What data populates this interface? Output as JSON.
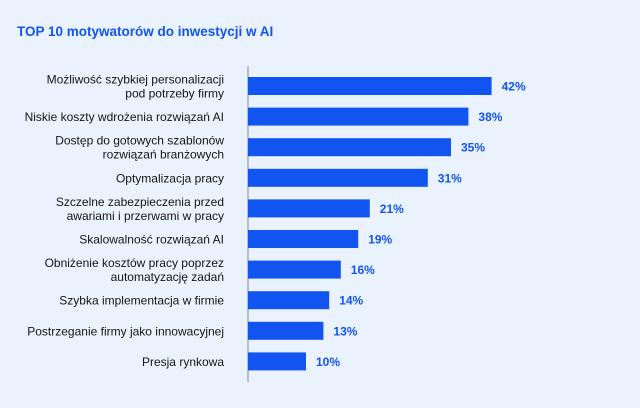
{
  "colors": {
    "background": "#eaf3fd",
    "bar": "#1254f0",
    "title": "#1254f0",
    "value_label": "#1254f0",
    "category_label": "#141414",
    "axis": "#7a8aa0"
  },
  "chart_data": {
    "type": "bar",
    "orientation": "horizontal",
    "title": "TOP 10 motywatorów do inwestycji w AI",
    "xlabel": "",
    "ylabel": "",
    "xlim": [
      0,
      50
    ],
    "grid": false,
    "legend": "none",
    "value_suffix": "%",
    "categories": [
      [
        "Możliwość szybkiej personalizacji",
        "pod potrzeby firmy"
      ],
      [
        "Niskie koszty wdrożenia rozwiązań AI"
      ],
      [
        "Dostęp do gotowych szablonów",
        "rozwiązań branżowych"
      ],
      [
        "Optymalizacja pracy"
      ],
      [
        "Szczelne zabezpieczenia przed",
        "awariami i przerwami w pracy"
      ],
      [
        "Skalowalność rozwiązań AI"
      ],
      [
        "Obniżenie kosztów pracy poprzez",
        "automatyzację zadań"
      ],
      [
        "Szybka implementacja w firmie"
      ],
      [
        "Postrzeganie firmy jako innowacyjnej"
      ],
      [
        "Presja rynkowa"
      ]
    ],
    "values": [
      42,
      38,
      35,
      31,
      21,
      19,
      16,
      14,
      13,
      10
    ]
  }
}
